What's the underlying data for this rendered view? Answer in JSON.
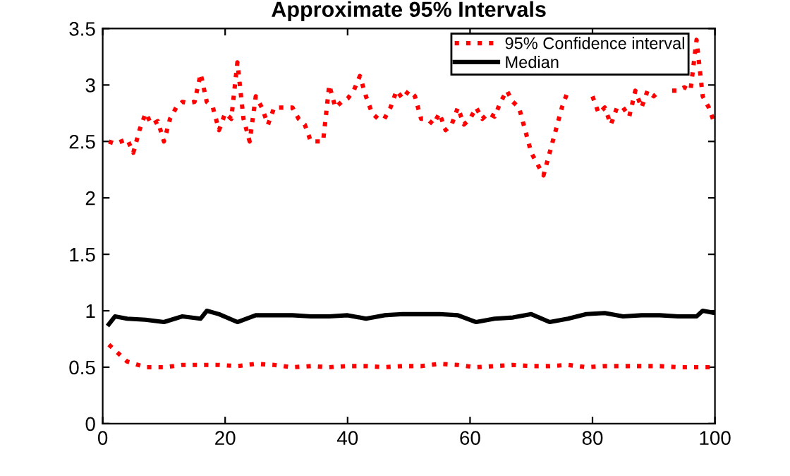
{
  "chart_data": {
    "type": "line",
    "title": "Approximate 95% Intervals",
    "xlim": [
      0,
      100
    ],
    "xticks": [
      0,
      20,
      40,
      60,
      80,
      100
    ],
    "ylim": [
      0,
      3.5
    ],
    "yticks": [
      0,
      0.5,
      1,
      1.5,
      2,
      2.5,
      3,
      3.5
    ],
    "grid": false,
    "legend": "top right",
    "marker": "none",
    "series": [
      {
        "name": "95% Confidence interval",
        "color": "#ff0000",
        "line_style": "dotted",
        "x": [
          1,
          2,
          3,
          4,
          5,
          6,
          7,
          8,
          9,
          10,
          11,
          12,
          13,
          14,
          15,
          16,
          17,
          18,
          19,
          20,
          21,
          22,
          23,
          24,
          25,
          26,
          27,
          28,
          29,
          30,
          31,
          32,
          33,
          34,
          35,
          36,
          37,
          38,
          39,
          40,
          41,
          42,
          43,
          44,
          45,
          46,
          47,
          48,
          49,
          50,
          51,
          52,
          53,
          54,
          55,
          56,
          57,
          58,
          59,
          60,
          61,
          62,
          63,
          64,
          65,
          66,
          67,
          68,
          69,
          70,
          71,
          72,
          73,
          74,
          75,
          76,
          77,
          78,
          79,
          80,
          81,
          82,
          83,
          84,
          85,
          86,
          87,
          88,
          89,
          90,
          91,
          92,
          93,
          94,
          95,
          96,
          97,
          98,
          99,
          100
        ],
        "values": [
          2.5,
          2.48,
          2.5,
          2.52,
          2.4,
          2.6,
          2.75,
          2.65,
          2.68,
          2.5,
          2.7,
          2.8,
          2.85,
          2.84,
          2.85,
          3.1,
          2.85,
          2.8,
          2.6,
          2.75,
          2.7,
          3.2,
          2.7,
          2.5,
          2.9,
          2.8,
          2.65,
          2.8,
          2.8,
          2.8,
          2.8,
          2.7,
          2.65,
          2.5,
          2.5,
          2.5,
          3.0,
          2.8,
          2.85,
          2.88,
          2.95,
          3.08,
          2.9,
          2.75,
          2.7,
          2.7,
          2.8,
          2.95,
          2.88,
          2.95,
          2.9,
          2.7,
          2.7,
          2.65,
          2.75,
          2.6,
          2.65,
          2.8,
          2.65,
          2.7,
          2.8,
          2.7,
          2.75,
          2.72,
          2.85,
          2.95,
          2.85,
          2.8,
          2.6,
          2.4,
          2.3,
          2.2,
          2.4,
          2.6,
          2.8,
          2.95,
          null,
          null,
          null,
          2.9,
          2.75,
          2.8,
          2.65,
          2.8,
          2.8,
          2.72,
          2.95,
          2.8,
          2.95,
          2.9,
          2.95,
          null,
          2.95,
          2.95,
          2.98,
          2.95,
          3.4,
          2.9,
          2.8,
          2.65
        ]
      },
      {
        "color": "#ff0000",
        "line_style": "dotted",
        "x": [
          1,
          4,
          7,
          10,
          13,
          16,
          19,
          22,
          25,
          28,
          31,
          34,
          37,
          40,
          43,
          46,
          49,
          52,
          55,
          58,
          61,
          64,
          67,
          70,
          73,
          76,
          79,
          82,
          85,
          88,
          91,
          94,
          97,
          100
        ],
        "values": [
          0.7,
          0.55,
          0.5,
          0.5,
          0.52,
          0.52,
          0.52,
          0.51,
          0.53,
          0.52,
          0.5,
          0.51,
          0.5,
          0.51,
          0.51,
          0.5,
          0.51,
          0.51,
          0.53,
          0.52,
          0.5,
          0.51,
          0.52,
          0.51,
          0.51,
          0.52,
          0.5,
          0.51,
          0.51,
          0.51,
          0.51,
          0.5,
          0.5,
          0.5
        ]
      },
      {
        "name": "Median",
        "color": "#000000",
        "line_style": "solid",
        "x": [
          1,
          2,
          4,
          7,
          10,
          13,
          16,
          17,
          19,
          22,
          25,
          28,
          31,
          34,
          37,
          40,
          43,
          46,
          49,
          52,
          55,
          58,
          61,
          64,
          67,
          70,
          73,
          76,
          79,
          82,
          85,
          88,
          91,
          94,
          97,
          98,
          100
        ],
        "values": [
          0.88,
          0.95,
          0.93,
          0.92,
          0.9,
          0.95,
          0.93,
          1.0,
          0.97,
          0.9,
          0.96,
          0.96,
          0.96,
          0.95,
          0.95,
          0.96,
          0.93,
          0.96,
          0.97,
          0.97,
          0.97,
          0.96,
          0.9,
          0.93,
          0.94,
          0.97,
          0.9,
          0.93,
          0.97,
          0.98,
          0.95,
          0.96,
          0.96,
          0.95,
          0.95,
          1.0,
          0.98
        ]
      }
    ]
  }
}
